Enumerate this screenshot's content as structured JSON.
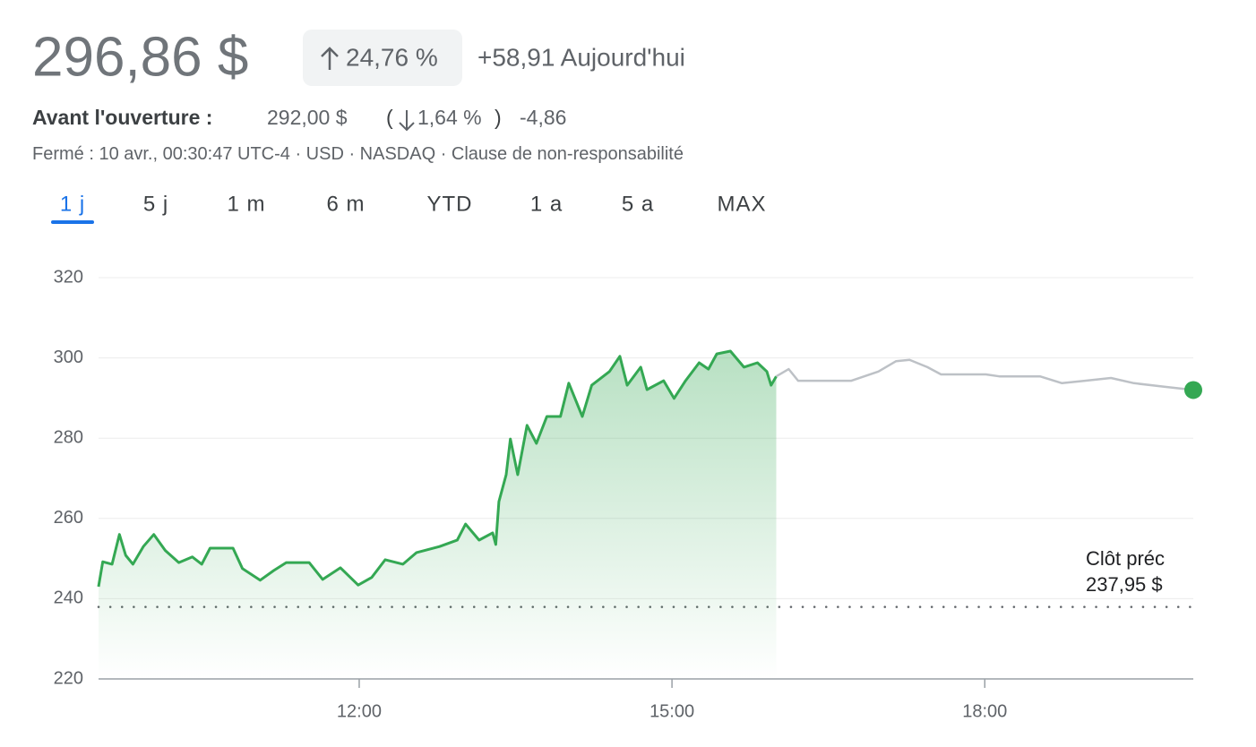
{
  "quote": {
    "price": "296,86 $",
    "change_pct": "24,76 %",
    "change_today": "+58,91 Aujourd'hui"
  },
  "pre_market": {
    "label": "Avant l'ouverture :",
    "price": "292,00 $",
    "paren_open": "(",
    "change_pct": "1,64 %",
    "paren_close": ")",
    "change": "-4,86"
  },
  "meta": {
    "status": "Fermé : 10 avr., 00:30:47 UTC-4 · USD · NASDAQ · ",
    "disclaimer": "Clause de non-responsabilité"
  },
  "tabs": {
    "items": [
      "1 j",
      "5 j",
      "1 m",
      "6 m",
      "YTD",
      "1 a",
      "5 a",
      "MAX"
    ],
    "selected": 0
  },
  "chart_data": {
    "type": "line",
    "series": [
      {
        "color": "#34a853",
        "area": true,
        "x": [
          9.5,
          9.54,
          9.63,
          9.7,
          9.76,
          9.83,
          9.93,
          10.03,
          10.14,
          10.27,
          10.4,
          10.49,
          10.57,
          10.79,
          10.88,
          11.05,
          11.18,
          11.3,
          11.52,
          11.65,
          11.82,
          11.99,
          12.12,
          12.25,
          12.42,
          12.55,
          12.77,
          12.94,
          13.02,
          13.15,
          13.28,
          13.31,
          13.34,
          13.41,
          13.45,
          13.52,
          13.61,
          13.7,
          13.8,
          13.93,
          14.01,
          14.14,
          14.23,
          14.4,
          14.5,
          14.57,
          14.7,
          14.76,
          14.92,
          15.02,
          15.13,
          15.26,
          15.35,
          15.43,
          15.56,
          15.69,
          15.82,
          15.91,
          15.95,
          16.0
        ],
        "values": [
          243,
          249.2,
          248.6,
          256,
          250.8,
          248.6,
          253,
          256,
          252,
          249,
          250.4,
          248.6,
          252.6,
          252.6,
          247.5,
          244.6,
          247,
          249,
          249,
          244.8,
          247.7,
          243.4,
          245.3,
          249.7,
          248.6,
          251.5,
          253,
          254.6,
          258.6,
          254.6,
          256.4,
          253.5,
          264.2,
          270.9,
          279.8,
          270.9,
          283.2,
          278.7,
          285.4,
          285.4,
          293.7,
          285.4,
          293.2,
          296.6,
          300.4,
          293.2,
          297.7,
          292.1,
          294.3,
          289.9,
          294.3,
          298.8,
          297.2,
          301,
          301.7,
          297.7,
          298.8,
          296.6,
          293.2,
          295.4
        ]
      },
      {
        "color": "#bdc1c6",
        "area": false,
        "end_dot": "#34a853",
        "x": [
          16.0,
          16.12,
          16.21,
          16.46,
          16.72,
          16.98,
          17.15,
          17.28,
          17.45,
          17.58,
          18.01,
          18.14,
          18.35,
          18.53,
          18.74,
          18.96,
          19.21,
          19.43,
          19.73,
          20.0
        ],
        "values": [
          295.4,
          297.2,
          294.3,
          294.3,
          294.3,
          296.6,
          299.2,
          299.5,
          297.7,
          295.9,
          295.9,
          295.4,
          295.4,
          295.4,
          293.7,
          294.3,
          295,
          293.7,
          292.8,
          292
        ]
      }
    ],
    "xlim": [
      9.5,
      20
    ],
    "xticks": [
      {
        "value": 12,
        "label": "12:00"
      },
      {
        "value": 15,
        "label": "15:00"
      },
      {
        "value": 18,
        "label": "18:00"
      }
    ],
    "ylim": [
      220,
      320
    ],
    "yticks": [
      220,
      240,
      260,
      280,
      300,
      320
    ],
    "grid": true,
    "reference": {
      "value": 237.95,
      "label": "237,95 $",
      "annotation": "Clôt préc"
    }
  }
}
